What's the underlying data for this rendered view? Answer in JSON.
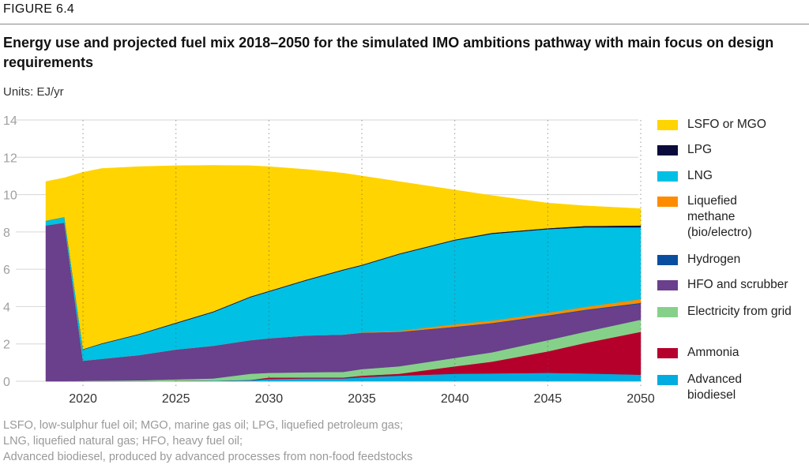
{
  "header": {
    "figure_label": "FIGURE 6.4",
    "units": "Units: EJ/yr"
  },
  "chart_data": {
    "type": "area",
    "stacked": true,
    "title": "Energy use and projected fuel mix 2018–2050 for the simulated IMO ambitions pathway with main focus on design requirements",
    "ylabel": "EJ/yr",
    "ylim": [
      0,
      14
    ],
    "yticks": [
      "0",
      "2",
      "4",
      "6",
      "8",
      "10",
      "12",
      "14"
    ],
    "xlim": [
      2018,
      2050
    ],
    "xticks": [
      "2020",
      "2025",
      "2030",
      "2035",
      "2040",
      "2045",
      "2050"
    ],
    "grid": {
      "horizontal": true,
      "vertical_dotted": true
    },
    "legend_position": "right",
    "x": [
      2018,
      2019,
      2020,
      2021,
      2023,
      2025,
      2027,
      2029,
      2030,
      2032,
      2034,
      2035,
      2037,
      2040,
      2042,
      2045,
      2047,
      2050
    ],
    "series": [
      {
        "name": "Advanced biodiesel",
        "color": "#00ADE0",
        "values": [
          0,
          0,
          0,
          0,
          0,
          0.02,
          0.03,
          0.05,
          0.12,
          0.15,
          0.15,
          0.22,
          0.3,
          0.4,
          0.42,
          0.45,
          0.42,
          0.35
        ]
      },
      {
        "name": "Ammonia",
        "color": "#B5002B",
        "values": [
          0,
          0,
          0,
          0,
          0,
          0,
          0,
          0.02,
          0.08,
          0.05,
          0.05,
          0.08,
          0.1,
          0.4,
          0.63,
          1.15,
          1.63,
          2.3
        ]
      },
      {
        "name": "Electricity from grid",
        "color": "#86D18A",
        "values": [
          0,
          0,
          0.02,
          0.03,
          0.05,
          0.08,
          0.12,
          0.33,
          0.25,
          0.28,
          0.3,
          0.35,
          0.4,
          0.45,
          0.5,
          0.6,
          0.6,
          0.65
        ]
      },
      {
        "name": "HFO and scrubber",
        "color": "#6A3F8C",
        "values": [
          8.35,
          8.5,
          1.08,
          1.17,
          1.35,
          1.6,
          1.75,
          1.8,
          1.85,
          1.97,
          2.0,
          1.95,
          1.85,
          1.65,
          1.55,
          1.3,
          1.15,
          0.85
        ]
      },
      {
        "name": "Hydrogen",
        "color": "#0A4F9F",
        "values": [
          0,
          0,
          0,
          0,
          0,
          0,
          0,
          0,
          0,
          0,
          0,
          0,
          0,
          0.02,
          0.02,
          0.03,
          0.03,
          0.05
        ]
      },
      {
        "name": "Liquefied methane (bio/electro)",
        "color": "#FF8C00",
        "values": [
          0,
          0,
          0,
          0,
          0,
          0,
          0,
          0,
          0,
          0,
          0,
          0.02,
          0.05,
          0.13,
          0.13,
          0.14,
          0.15,
          0.2
        ]
      },
      {
        "name": "LNG",
        "color": "#00C0E4",
        "values": [
          0.25,
          0.3,
          0.6,
          0.8,
          1.1,
          1.4,
          1.8,
          2.3,
          2.5,
          2.95,
          3.45,
          3.58,
          4.1,
          4.5,
          4.65,
          4.48,
          4.27,
          3.85
        ]
      },
      {
        "name": "LPG",
        "color": "#0B0B3B",
        "values": [
          0,
          0,
          0.02,
          0.03,
          0.03,
          0.04,
          0.04,
          0.04,
          0.04,
          0.04,
          0.04,
          0.04,
          0.04,
          0.04,
          0.05,
          0.05,
          0.07,
          0.1
        ]
      },
      {
        "name": "LSFO or MGO",
        "color": "#FFD400",
        "values": [
          2.1,
          2.1,
          9.48,
          9.37,
          8.97,
          8.41,
          7.83,
          7.01,
          6.66,
          5.91,
          5.16,
          4.76,
          3.86,
          2.66,
          2.0,
          1.35,
          1.08,
          0.9
        ]
      }
    ],
    "legend": [
      {
        "label": "LSFO or MGO",
        "color": "#FFD400"
      },
      {
        "label": "LPG",
        "color": "#0B0B3B"
      },
      {
        "label": "LNG",
        "color": "#00C0E4"
      },
      {
        "label": "Liquefied methane (bio/electro)",
        "color": "#FF8C00"
      },
      {
        "label": "Hydrogen",
        "color": "#0A4F9F"
      },
      {
        "label": "HFO and scrubber",
        "color": "#6A3F8C"
      },
      {
        "label": "Electricity from grid",
        "color": "#86D18A"
      },
      {
        "label": "Ammonia",
        "color": "#B5002B"
      },
      {
        "label": "Advanced biodiesel",
        "color": "#00ADE0"
      }
    ]
  },
  "footnotes": [
    "LSFO, low-sulphur fuel oil; MGO, marine gas oil; LPG, liquefied petroleum gas;",
    "LNG, liquefied natural gas; HFO, heavy fuel oil;",
    "Advanced biodiesel, produced by advanced processes from non-food feedstocks"
  ]
}
